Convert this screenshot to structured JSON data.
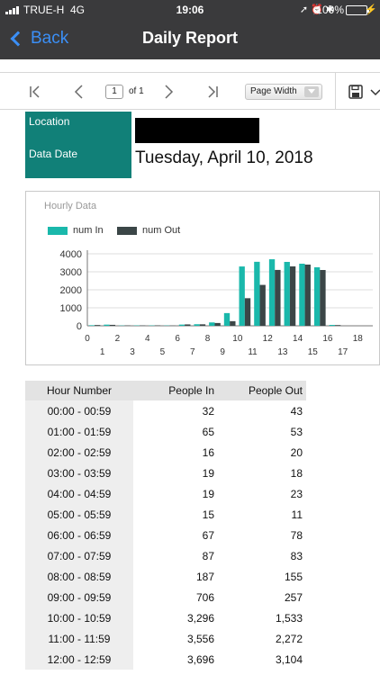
{
  "status_bar": {
    "carrier": "TRUE-H",
    "network": "4G",
    "time": "19:06",
    "battery": "100%",
    "battery_level": 1.0
  },
  "nav": {
    "back_label": "Back",
    "title": "Daily Report"
  },
  "toolbar": {
    "page_input": "1",
    "page_of": "of 1",
    "zoom_selected": "Page Width",
    "icons": [
      "first-page-icon",
      "prev-page-icon",
      "next-page-icon",
      "last-page-icon",
      "save-icon",
      "chevron-down-icon"
    ]
  },
  "report": {
    "location_label": "Location",
    "location_value": "",
    "date_label": "Data Date",
    "date_value": "Tuesday, April 10, 2018",
    "accent_color": "#118078"
  },
  "chart_data": {
    "type": "bar",
    "title": "Hourly Data",
    "x": [
      0,
      1,
      2,
      3,
      4,
      5,
      6,
      7,
      8,
      9,
      10,
      11,
      12,
      13,
      14,
      15,
      16,
      17,
      18
    ],
    "x_tick_labels_even": [
      "0",
      "2",
      "4",
      "6",
      "8",
      "10",
      "12",
      "14",
      "16",
      "18"
    ],
    "x_tick_labels_odd": [
      "1",
      "3",
      "5",
      "7",
      "9",
      "11",
      "13",
      "15",
      "17"
    ],
    "series": [
      {
        "name": "num In",
        "color": "#1ab8ab",
        "values": [
          32,
          65,
          16,
          19,
          19,
          15,
          67,
          87,
          187,
          706,
          3296,
          3556,
          3696,
          3550,
          3450,
          3250,
          50,
          0,
          0
        ]
      },
      {
        "name": "num Out",
        "color": "#3b4647",
        "values": [
          43,
          53,
          20,
          18,
          23,
          11,
          78,
          83,
          155,
          257,
          1533,
          2272,
          3104,
          3300,
          3400,
          3100,
          40,
          0,
          0
        ]
      }
    ],
    "ylim": [
      0,
      4000
    ],
    "y_ticks": [
      "0",
      "1000",
      "2000",
      "3000",
      "4000"
    ],
    "grid": true,
    "legend": "top-left"
  },
  "table": {
    "headers": [
      "Hour Number",
      "People In",
      "People Out"
    ],
    "rows": [
      [
        "00:00 - 00:59",
        "32",
        "43"
      ],
      [
        "01:00 - 01:59",
        "65",
        "53"
      ],
      [
        "02:00 - 02:59",
        "16",
        "20"
      ],
      [
        "03:00 - 03:59",
        "19",
        "18"
      ],
      [
        "04:00 - 04:59",
        "19",
        "23"
      ],
      [
        "05:00 - 05:59",
        "15",
        "11"
      ],
      [
        "06:00 - 06:59",
        "67",
        "78"
      ],
      [
        "07:00 - 07:59",
        "87",
        "83"
      ],
      [
        "08:00 - 08:59",
        "187",
        "155"
      ],
      [
        "09:00 - 09:59",
        "706",
        "257"
      ],
      [
        "10:00 - 10:59",
        "3,296",
        "1,533"
      ],
      [
        "11:00 - 11:59",
        "3,556",
        "2,272"
      ],
      [
        "12:00 - 12:59",
        "3,696",
        "3,104"
      ]
    ]
  }
}
